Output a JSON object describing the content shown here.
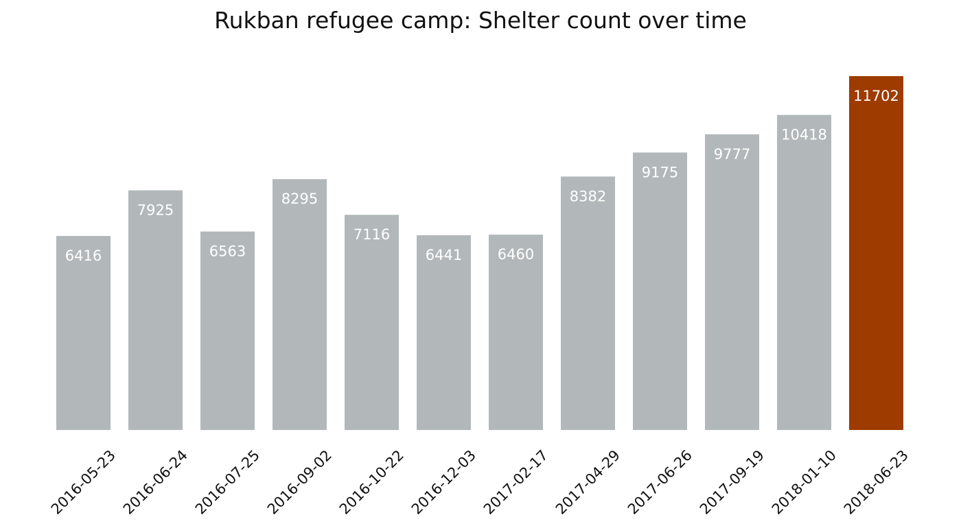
{
  "colors": {
    "default_bar": "#b2b8b9",
    "highlight_bar": "#9e3b00",
    "bar_label": "#ffffff",
    "text": "#111111"
  },
  "chart_data": {
    "type": "bar",
    "title": "Rukban refugee camp: Shelter count over time",
    "xlabel": "",
    "ylabel": "",
    "ylim": [
      0,
      11702
    ],
    "grid": false,
    "highlight_category": "2018-06-23",
    "categories": [
      "2016-05-23",
      "2016-06-24",
      "2016-07-25",
      "2016-09-02",
      "2016-10-22",
      "2016-12-03",
      "2017-02-17",
      "2017-04-29",
      "2017-06-26",
      "2017-09-19",
      "2018-01-10",
      "2018-06-23"
    ],
    "values": [
      6416,
      7925,
      6563,
      8295,
      7116,
      6441,
      6460,
      8382,
      9175,
      9777,
      10418,
      11702
    ]
  }
}
